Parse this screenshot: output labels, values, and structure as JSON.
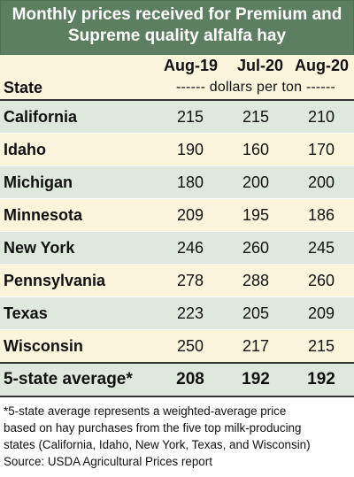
{
  "chart_data": {
    "type": "table",
    "title_lines": [
      "Monthly prices received for Premium and",
      "Supreme quality alfalfa hay"
    ],
    "columns": [
      "Aug-19",
      "Jul-20",
      "Aug-20"
    ],
    "row_header": "State",
    "unit": "------ dollars per ton ------",
    "rows": [
      {
        "state": "California",
        "values": [
          215,
          215,
          210
        ]
      },
      {
        "state": "Idaho",
        "values": [
          190,
          160,
          170
        ]
      },
      {
        "state": "Michigan",
        "values": [
          180,
          200,
          200
        ]
      },
      {
        "state": "Minnesota",
        "values": [
          209,
          195,
          186
        ]
      },
      {
        "state": "New York",
        "values": [
          246,
          260,
          245
        ]
      },
      {
        "state": "Pennsylvania",
        "values": [
          278,
          288,
          260
        ]
      },
      {
        "state": "Texas",
        "values": [
          223,
          205,
          209
        ]
      },
      {
        "state": "Wisconsin",
        "values": [
          250,
          217,
          215
        ]
      }
    ],
    "average": {
      "label": "5-state average*",
      "values": [
        208,
        192,
        192
      ]
    },
    "footnote_lines": [
      "*5-state average represents  a weighted-average price",
      "based on hay purchases from the five top milk-producing",
      "states (California, Idaho, New York, Texas, and Wisconsin)"
    ],
    "source": "Source: USDA Agricultural Prices report"
  },
  "colors": {
    "title_bg": "#5b7f60",
    "row_green": "#dfe8dc",
    "row_cream": "#fbf5dc"
  }
}
